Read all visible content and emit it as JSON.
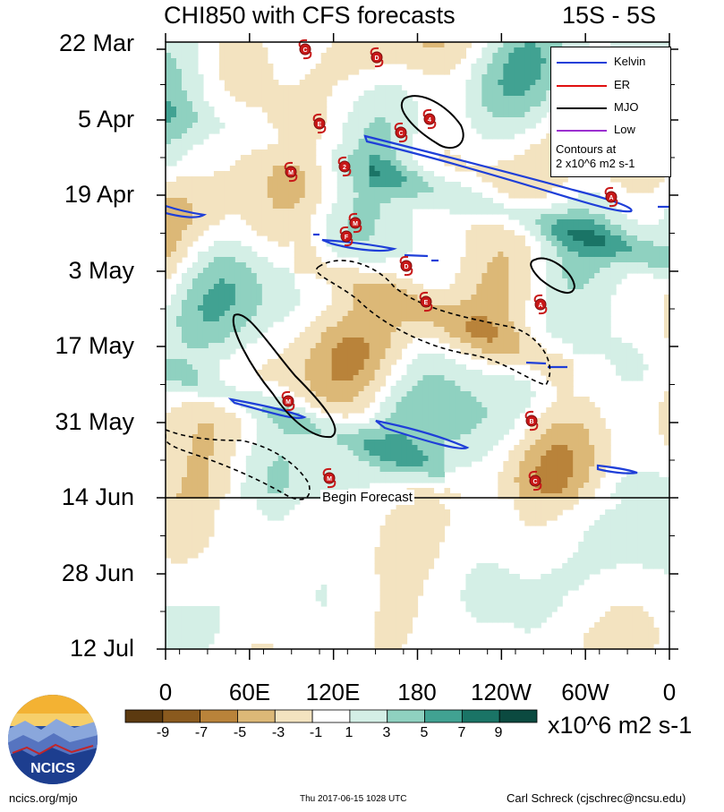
{
  "title": "CHI850 with CFS forecasts",
  "lat_band": "15S - 5S",
  "y_ticks": [
    "22 Mar",
    "5 Apr",
    "19 Apr",
    "3 May",
    "17 May",
    "31 May",
    "14 Jun",
    "28 Jun",
    "12 Jul"
  ],
  "x_ticks": [
    "0",
    "60E",
    "120E",
    "180",
    "120W",
    "60W",
    "0"
  ],
  "colorbar": {
    "labels": [
      "-9",
      "-7",
      "-5",
      "-3",
      "-1",
      "1",
      "3",
      "5",
      "7",
      "9"
    ],
    "colors": [
      "#5c3a10",
      "#8a5a1e",
      "#b9833a",
      "#dcb877",
      "#f3e3c0",
      "#ffffff",
      "#d4efe6",
      "#8fd1c0",
      "#41a292",
      "#1a7466",
      "#0b4a40"
    ],
    "units": "x10^6 m2 s-1"
  },
  "legend": {
    "items": [
      {
        "name": "Kelvin",
        "color": "#1f3fd8"
      },
      {
        "name": "ER",
        "color": "#e01010"
      },
      {
        "name": "MJO",
        "color": "#000000"
      },
      {
        "name": "Low",
        "color": "#9b30d0"
      }
    ],
    "note_line1": "Contours at",
    "note_line2": "2 x10^6 m2 s-1"
  },
  "forecast_label": "Begin Forecast",
  "storm_markers": [
    "C",
    "D",
    "E",
    "C",
    "4",
    "M",
    "2",
    "A",
    "M",
    "F",
    "D",
    "E",
    "A",
    "M",
    "B",
    "M",
    "C"
  ],
  "logo_text": "NCICS",
  "footer": {
    "left": "ncics.org/mjo",
    "middle": "Thu 2017-06-15 1028 UTC",
    "right": "Carl Schreck (cjschrec@ncsu.edu)"
  },
  "chart_data": {
    "type": "heatmap",
    "title": "CHI850 with CFS forecasts",
    "x_ticks": [
      "0",
      "60E",
      "120E",
      "180",
      "120W",
      "60W",
      "0"
    ],
    "y_ticks": [
      "22 Mar",
      "5 Apr",
      "19 Apr",
      "3 May",
      "17 May",
      "31 May",
      "14 Jun",
      "28 Jun",
      "12 Jul"
    ],
    "value_range": [
      -9,
      9
    ],
    "contour_interval": 2,
    "forecast_start": "14 Jun",
    "series": [
      {
        "name": "Kelvin"
      },
      {
        "name": "ER"
      },
      {
        "name": "MJO"
      },
      {
        "name": "Low"
      }
    ]
  }
}
